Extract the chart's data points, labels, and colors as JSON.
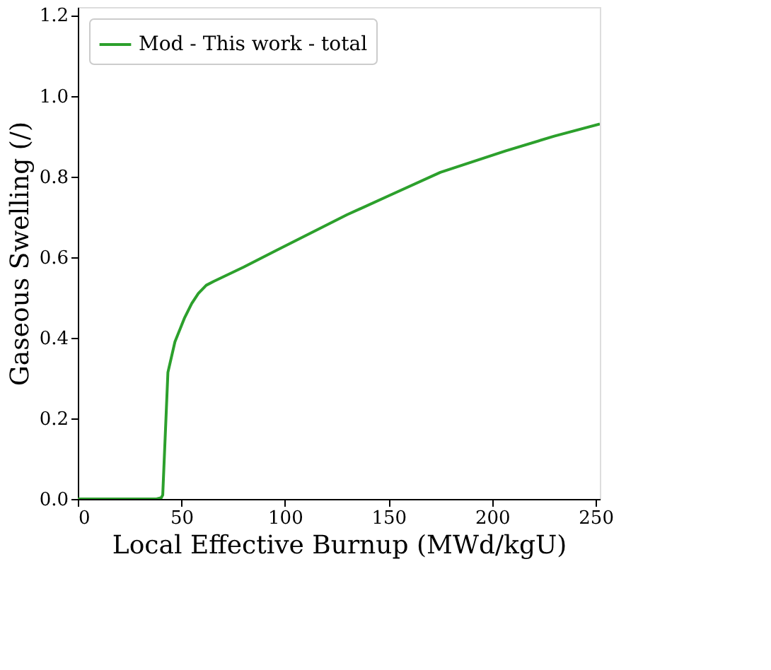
{
  "chart_data": {
    "type": "line",
    "xlabel": "Local Effective Burnup (MWd/kgU)",
    "ylabel": "Gaseous Swelling (/)",
    "x": [
      0,
      20,
      38,
      40.3,
      41,
      43.5,
      46.9,
      51.6,
      55,
      58.2,
      62,
      65.7,
      80,
      95.7,
      112.6,
      130,
      150.1,
      175,
      206.4,
      230,
      252
    ],
    "series": [
      {
        "name": "Mod - This work - total",
        "color": "#2ca02c",
        "values": [
          0,
          0,
          0,
          0.003,
          0.01,
          0.314,
          0.39,
          0.45,
          0.485,
          0.51,
          0.53,
          0.54,
          0.575,
          0.616,
          0.66,
          0.705,
          0.752,
          0.81,
          0.863,
          0.9,
          0.93
        ]
      }
    ],
    "xlim": [
      0,
      252
    ],
    "ylim": [
      0,
      1.22
    ],
    "xticks": [
      0,
      50,
      100,
      150,
      200,
      250
    ],
    "yticks": [
      {
        "value": 0,
        "label": "0.0"
      },
      {
        "value": 0.2,
        "label": "0.2"
      },
      {
        "value": 0.4,
        "label": "0.4"
      },
      {
        "value": 0.6,
        "label": "0.6"
      },
      {
        "value": 0.8,
        "label": "0.8"
      },
      {
        "value": 1.0,
        "label": "1.0"
      },
      {
        "value": 1.2,
        "label": "1.2"
      }
    ],
    "grid": false,
    "legend": "top left",
    "line_style": "solid",
    "marker": "none"
  }
}
